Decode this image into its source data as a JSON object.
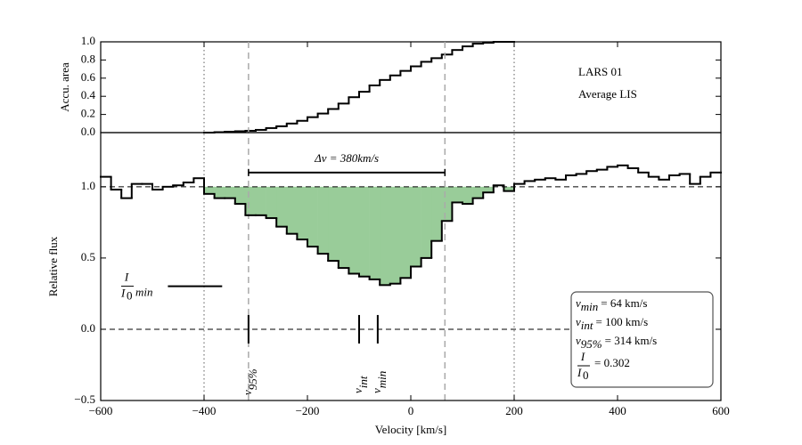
{
  "chart_data": [
    {
      "type": "step",
      "ylabel": "Accu. area",
      "color": "#000000",
      "xlim": [
        -600,
        600
      ],
      "ylim": [
        0,
        1.0
      ],
      "yticks": [
        {
          "value": 0,
          "label": "0.0"
        },
        0.2,
        0.4,
        0.6,
        0.8,
        {
          "value": 1.0,
          "label": "1.0"
        }
      ],
      "x": [
        -390,
        -370,
        -350,
        -330,
        -310,
        -290,
        -270,
        -250,
        -230,
        -210,
        -190,
        -170,
        -150,
        -130,
        -110,
        -90,
        -70,
        -50,
        -30,
        -10,
        10,
        30,
        50,
        70,
        90,
        110,
        130,
        150,
        170,
        190
      ],
      "values": [
        0.0,
        0.005,
        0.01,
        0.015,
        0.02,
        0.03,
        0.05,
        0.07,
        0.1,
        0.13,
        0.17,
        0.21,
        0.26,
        0.32,
        0.39,
        0.45,
        0.52,
        0.58,
        0.63,
        0.68,
        0.73,
        0.78,
        0.82,
        0.86,
        0.91,
        0.95,
        0.98,
        0.99,
        1.0,
        1.0
      ],
      "annotations": [
        "LARS 01",
        "Average LIS"
      ]
    },
    {
      "type": "step",
      "ylabel": "Relative flux",
      "xlabel": "Velocity [km/s]",
      "color": "#000000",
      "fill_color": "#99cc99",
      "fill_range": [
        -400,
        200
      ],
      "continuum": 1.0,
      "zero_line": 0.0,
      "xlim": [
        -600,
        600
      ],
      "ylim": [
        -0.5,
        1.38
      ],
      "xticks": [
        {
          "value": -600,
          "label": "−600"
        },
        {
          "value": -400,
          "label": "−400"
        },
        {
          "value": -200,
          "label": "−200"
        },
        0,
        200,
        400,
        600
      ],
      "yticks": [
        {
          "value": -0.5,
          "label": "−0.5"
        },
        {
          "value": 0,
          "label": "0.0"
        },
        0.5,
        {
          "value": 1.0,
          "label": "1.0"
        }
      ],
      "x": [
        -590,
        -570,
        -550,
        -530,
        -510,
        -490,
        -470,
        -450,
        -430,
        -410,
        -390,
        -370,
        -350,
        -330,
        -310,
        -290,
        -270,
        -250,
        -230,
        -210,
        -190,
        -170,
        -150,
        -130,
        -110,
        -90,
        -70,
        -50,
        -30,
        -10,
        10,
        30,
        50,
        70,
        90,
        110,
        130,
        150,
        170,
        190,
        210,
        230,
        250,
        270,
        290,
        310,
        330,
        350,
        370,
        390,
        410,
        430,
        450,
        470,
        490,
        510,
        530,
        550,
        570,
        590
      ],
      "values": [
        1.07,
        0.98,
        0.92,
        1.02,
        1.02,
        0.98,
        1.0,
        1.01,
        1.03,
        1.06,
        0.95,
        0.92,
        0.92,
        0.88,
        0.8,
        0.8,
        0.78,
        0.72,
        0.67,
        0.63,
        0.58,
        0.53,
        0.48,
        0.43,
        0.39,
        0.37,
        0.35,
        0.31,
        0.32,
        0.36,
        0.44,
        0.5,
        0.62,
        0.76,
        0.89,
        0.88,
        0.92,
        0.96,
        1.01,
        0.97,
        1.02,
        1.04,
        1.05,
        1.06,
        1.05,
        1.08,
        1.09,
        1.11,
        1.12,
        1.14,
        1.15,
        1.13,
        1.1,
        1.07,
        1.05,
        1.08,
        1.09,
        1.02,
        1.07,
        1.1
      ],
      "vlines": [
        {
          "x": -400,
          "style": "dotted"
        },
        {
          "x": 200,
          "style": "dotted"
        },
        {
          "x": -314,
          "style": "dashed"
        },
        {
          "x": 66,
          "style": "dashed"
        }
      ],
      "delta_v": {
        "label": "Δv = 380km/s",
        "from": -314,
        "to": 66,
        "y": 1.1
      },
      "markers": [
        {
          "x": -314,
          "var": "v",
          "sub": "95%"
        },
        {
          "x": -100,
          "var": "v",
          "sub": "int"
        },
        {
          "x": -64,
          "var": "v",
          "sub": "min"
        }
      ],
      "i_min": {
        "value": 0.302,
        "from": -470,
        "to": -365,
        "num": "I",
        "den": "I",
        "den_sub": "0",
        "sub": "min"
      },
      "stats": [
        {
          "var": "v",
          "sub": "min",
          "rest": "= 64 km/s"
        },
        {
          "var": "v",
          "sub": "int",
          "rest": "= 100 km/s"
        },
        {
          "var": "v",
          "sub": "95%",
          "rest": "= 314 km/s"
        },
        {
          "num": "I",
          "den": "I",
          "den_sub": "0",
          "rest": "= 0.302"
        }
      ]
    }
  ]
}
